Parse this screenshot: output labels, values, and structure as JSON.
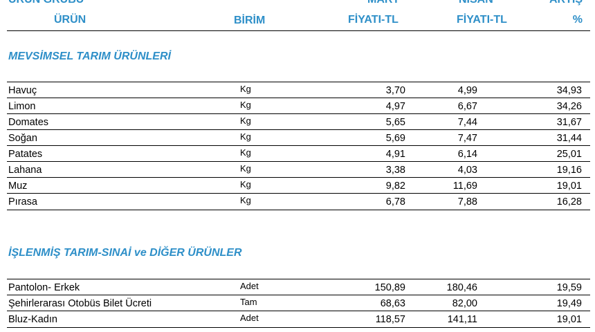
{
  "header": {
    "group_label": "ÜRÜN GRUBU",
    "product_label": "ÜRÜN",
    "unit_label": "BİRİM",
    "mart_line1": "MART",
    "mart_line2": "FİYATI-TL",
    "nisan_line1": "NİSAN",
    "nisan_line2": "FİYATI-TL",
    "artis_line1": "ARTIŞ",
    "artis_line2": "%"
  },
  "sections": [
    {
      "title": "MEVSİMSEL TARIM ÜRÜNLERİ",
      "rows": [
        {
          "name": "Havuç",
          "unit": "Kg",
          "mart": "3,70",
          "nisan": "4,99",
          "artis": "34,93"
        },
        {
          "name": "Limon",
          "unit": "Kg",
          "mart": "4,97",
          "nisan": "6,67",
          "artis": "34,26"
        },
        {
          "name": "Domates",
          "unit": "Kg",
          "mart": "5,65",
          "nisan": "7,44",
          "artis": "31,67"
        },
        {
          "name": "Soğan",
          "unit": "Kg",
          "mart": "5,69",
          "nisan": "7,47",
          "artis": "31,44"
        },
        {
          "name": "Patates",
          "unit": "Kg",
          "mart": "4,91",
          "nisan": "6,14",
          "artis": "25,01"
        },
        {
          "name": "Lahana",
          "unit": "Kg",
          "mart": "3,38",
          "nisan": "4,03",
          "artis": "19,16"
        },
        {
          "name": "Muz",
          "unit": "Kg",
          "mart": "9,82",
          "nisan": "11,69",
          "artis": "19,01"
        },
        {
          "name": "Pırasa",
          "unit": "Kg",
          "mart": "6,78",
          "nisan": "7,88",
          "artis": "16,28"
        }
      ]
    },
    {
      "title": "İŞLENMİŞ TARIM-SINAİ ve DİĞER ÜRÜNLER",
      "rows": [
        {
          "name": "Pantolon- Erkek",
          "unit": "Adet",
          "mart": "150,89",
          "nisan": "180,46",
          "artis": "19,59"
        },
        {
          "name": "Şehirlerarası Otobüs Bilet Ücreti",
          "unit": "Tam",
          "mart": "68,63",
          "nisan": "82,00",
          "artis": "19,49"
        },
        {
          "name": "Bluz-Kadın",
          "unit": "Adet",
          "mart": "118,57",
          "nisan": "141,11",
          "artis": "19,01"
        }
      ]
    }
  ]
}
